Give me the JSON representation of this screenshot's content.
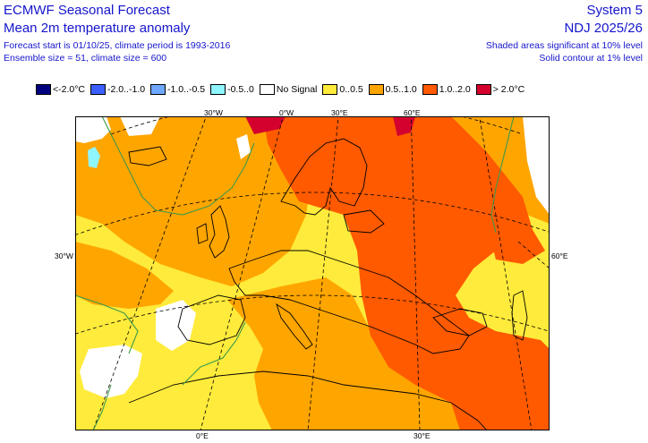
{
  "header": {
    "title": "ECMWF Seasonal Forecast",
    "subtitle": "Mean 2m temperature anomaly",
    "forecast_info": "Forecast start is 01/10/25, climate period is 1993-2016",
    "ensemble_info": "Ensemble size = 51, climate size = 600",
    "system": "System 5",
    "season": "NDJ 2025/26",
    "significance_shaded": "Shaded areas significant at 10% level",
    "significance_contour": "Solid contour at 1% level"
  },
  "legend": [
    {
      "label": "<-2.0°C",
      "color": "#00007f"
    },
    {
      "label": "-2.0..-1.0",
      "color": "#3b5fff"
    },
    {
      "label": "-1.0..-0.5",
      "color": "#6fa9ff"
    },
    {
      "label": "-0.5..0",
      "color": "#8ff5ff"
    },
    {
      "label": "No Signal",
      "color": "#ffffff"
    },
    {
      "label": "0..0.5",
      "color": "#ffeb3b"
    },
    {
      "label": "0.5..1.0",
      "color": "#ffa500"
    },
    {
      "label": "1.0..2.0",
      "color": "#ff5a00"
    },
    {
      "label": "> 2.0°C",
      "color": "#d4002e"
    }
  ],
  "map": {
    "lon_labels_top": [
      "30°W",
      "0°W",
      "30°E",
      "60°E"
    ],
    "lon_labels_bottom": [
      "0°E",
      "30°E"
    ],
    "lat_label_left": "30°W",
    "lat_label_right": "60°E"
  }
}
